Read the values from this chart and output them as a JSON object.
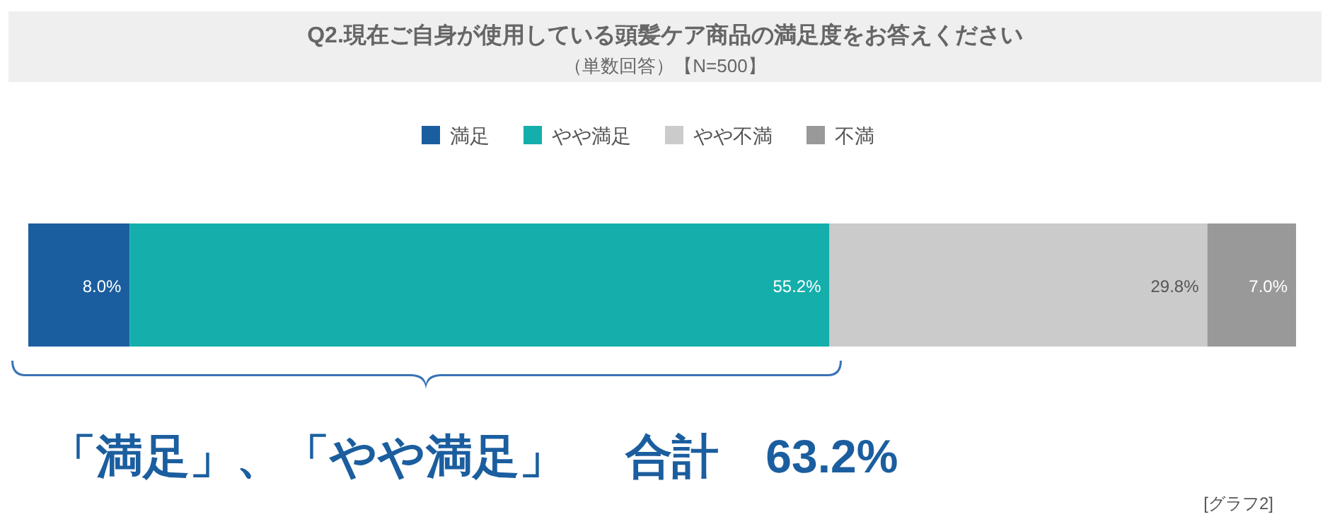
{
  "chart_data": {
    "type": "bar",
    "orientation": "horizontal",
    "stacked": true,
    "title": "Q2.現在ご自身が使用している頭髪ケア商品の満足度をお答えください",
    "subtitle": "（単数回答）【N=500】",
    "categories": [
      null
    ],
    "series": [
      {
        "name": "満足",
        "color": "#1b5e9f",
        "values": [
          8.0
        ],
        "value_labels": [
          "8.0%"
        ]
      },
      {
        "name": "やや満足",
        "color": "#14aeab",
        "values": [
          55.2
        ],
        "value_labels": [
          "55.2%"
        ]
      },
      {
        "name": "やや不満",
        "color": "#cbcbcb",
        "values": [
          29.8
        ],
        "value_labels": [
          "29.8%"
        ]
      },
      {
        "name": "不満",
        "color": "#999999",
        "values": [
          7.0
        ],
        "value_labels": [
          "7.0%"
        ]
      }
    ],
    "xlim": [
      0,
      100
    ],
    "legend": "top",
    "annotations": [
      "「満足」、「やや満足」　 合計　63.2%",
      "[グラフ2]"
    ]
  }
}
